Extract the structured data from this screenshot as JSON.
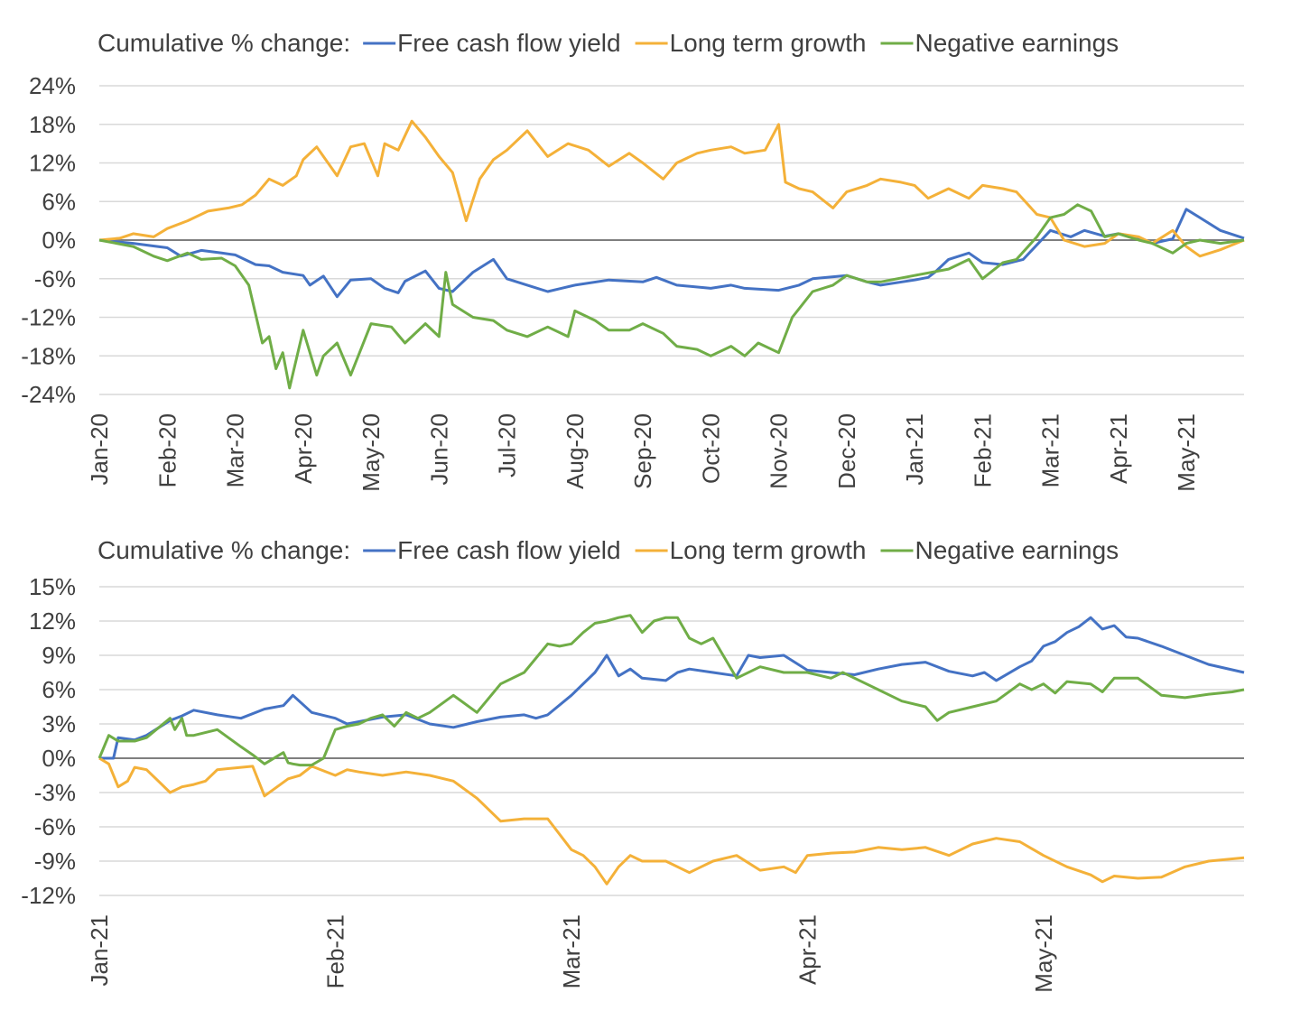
{
  "colors": {
    "free_cash_flow_yield": "#4472c4",
    "long_term_growth": "#f4b139",
    "negative_earnings": "#70ad47"
  },
  "chart_data": [
    {
      "type": "line",
      "legend_prefix": "Cumulative % change:",
      "legend_placement": "top",
      "grid": true,
      "ylim": [
        -24,
        24
      ],
      "yticks": [
        -24,
        -18,
        -12,
        -6,
        0,
        6,
        12,
        18,
        24
      ],
      "ytick_labels": [
        "-24%",
        "-18%",
        "-12%",
        "-6%",
        "0%",
        "6%",
        "12%",
        "18%",
        "24%"
      ],
      "xlim": [
        0,
        16.85
      ],
      "xticks": [
        0,
        1,
        2,
        3,
        4,
        5,
        6,
        7,
        8,
        9,
        10,
        11,
        12,
        13,
        14,
        15,
        16
      ],
      "xtick_labels": [
        "Jan-20",
        "Feb-20",
        "Mar-20",
        "Apr-20",
        "May-20",
        "Jun-20",
        "Jul-20",
        "Aug-20",
        "Sep-20",
        "Oct-20",
        "Nov-20",
        "Dec-20",
        "Jan-21",
        "Feb-21",
        "Mar-21",
        "Apr-21",
        "May-21"
      ],
      "series": [
        {
          "name": "Free cash flow yield",
          "color_key": "free_cash_flow_yield",
          "x": [
            0,
            0.5,
            1,
            1.2,
            1.5,
            1.8,
            2,
            2.3,
            2.5,
            2.7,
            3,
            3.1,
            3.3,
            3.5,
            3.7,
            4,
            4.2,
            4.4,
            4.5,
            4.8,
            5,
            5.2,
            5.5,
            5.8,
            6,
            6.3,
            6.6,
            6.8,
            7,
            7.5,
            8,
            8.2,
            8.5,
            9,
            9.3,
            9.5,
            10,
            10.3,
            10.5,
            11,
            11.3,
            11.5,
            12,
            12.2,
            12.3,
            12.5,
            12.8,
            13,
            13.3,
            13.6,
            14,
            14.3,
            14.5,
            14.8,
            15,
            15.3,
            15.5,
            15.8,
            16,
            16.2,
            16.5,
            16.85
          ],
          "values": [
            0,
            -0.5,
            -1.2,
            -2.5,
            -1.6,
            -2.0,
            -2.3,
            -3.8,
            -4.0,
            -5.0,
            -5.5,
            -7.0,
            -5.6,
            -8.8,
            -6.2,
            -6.0,
            -7.5,
            -8.2,
            -6.4,
            -4.8,
            -7.5,
            -8.0,
            -5.0,
            -3.0,
            -6.0,
            -7.0,
            -8.0,
            -7.5,
            -7.0,
            -6.2,
            -6.5,
            -5.8,
            -7.0,
            -7.5,
            -7.0,
            -7.5,
            -7.8,
            -7.0,
            -6.0,
            -5.5,
            -6.5,
            -7.0,
            -6.2,
            -5.8,
            -5.0,
            -3.0,
            -2.0,
            -3.5,
            -3.8,
            -3.0,
            1.5,
            0.5,
            1.5,
            0.6,
            1.0,
            0.4,
            -0.5,
            0.2,
            4.8,
            3.5,
            1.5,
            0.3
          ]
        },
        {
          "name": "Long term growth",
          "color_key": "long_term_growth",
          "x": [
            0,
            0.3,
            0.5,
            0.8,
            1,
            1.3,
            1.6,
            1.9,
            2.1,
            2.3,
            2.5,
            2.7,
            2.9,
            3,
            3.2,
            3.3,
            3.5,
            3.7,
            3.9,
            4.1,
            4.2,
            4.4,
            4.6,
            4.8,
            5,
            5.2,
            5.4,
            5.6,
            5.8,
            6,
            6.3,
            6.6,
            6.9,
            7.2,
            7.5,
            7.8,
            8,
            8.3,
            8.5,
            8.8,
            9,
            9.3,
            9.5,
            9.8,
            10,
            10.1,
            10.3,
            10.5,
            10.8,
            11,
            11.3,
            11.5,
            11.8,
            12,
            12.2,
            12.5,
            12.8,
            13,
            13.3,
            13.5,
            13.8,
            14,
            14.2,
            14.5,
            14.8,
            15,
            15.3,
            15.5,
            15.8,
            16,
            16.2,
            16.5,
            16.85
          ],
          "values": [
            0,
            0.3,
            1.0,
            0.5,
            1.8,
            3.0,
            4.5,
            5.0,
            5.5,
            7.0,
            9.5,
            8.5,
            10.0,
            12.5,
            14.5,
            13.0,
            10.0,
            14.5,
            15.0,
            10.0,
            15.0,
            14.0,
            18.5,
            16.0,
            13.0,
            10.5,
            3.0,
            9.5,
            12.5,
            14.0,
            17.0,
            13.0,
            15.0,
            14.0,
            11.5,
            13.5,
            12.0,
            9.5,
            12.0,
            13.5,
            14.0,
            14.5,
            13.5,
            14.0,
            18.0,
            9.0,
            8.0,
            7.5,
            5.0,
            7.5,
            8.5,
            9.5,
            9.0,
            8.5,
            6.5,
            8.0,
            6.5,
            8.5,
            8.0,
            7.5,
            4.0,
            3.5,
            0.0,
            -1.0,
            -0.5,
            1.0,
            0.5,
            -0.5,
            1.5,
            -1.0,
            -2.5,
            -1.5,
            0.0
          ]
        },
        {
          "name": "Negative earnings",
          "color_key": "negative_earnings",
          "x": [
            0,
            0.5,
            0.8,
            1,
            1.3,
            1.5,
            1.8,
            2,
            2.2,
            2.4,
            2.5,
            2.6,
            2.7,
            2.8,
            3,
            3.2,
            3.3,
            3.5,
            3.7,
            4,
            4.3,
            4.5,
            4.8,
            5,
            5.1,
            5.2,
            5.5,
            5.8,
            6,
            6.3,
            6.6,
            6.9,
            7,
            7.3,
            7.5,
            7.8,
            8,
            8.3,
            8.5,
            8.8,
            9,
            9.3,
            9.5,
            9.7,
            10,
            10.2,
            10.5,
            10.8,
            11,
            11.3,
            11.5,
            12,
            12.5,
            12.8,
            13,
            13.3,
            13.5,
            13.8,
            14,
            14.2,
            14.4,
            14.6,
            14.8,
            15,
            15.3,
            15.5,
            15.8,
            16,
            16.2,
            16.5,
            16.85
          ],
          "values": [
            0,
            -1.0,
            -2.5,
            -3.2,
            -2.0,
            -3.0,
            -2.8,
            -4.0,
            -7.0,
            -16.0,
            -15.0,
            -20.0,
            -17.5,
            -23.0,
            -14.0,
            -21.0,
            -18.0,
            -16.0,
            -21.0,
            -13.0,
            -13.5,
            -16.0,
            -13.0,
            -15.0,
            -5.0,
            -10.0,
            -12.0,
            -12.5,
            -14.0,
            -15.0,
            -13.5,
            -15.0,
            -11.0,
            -12.5,
            -14.0,
            -14.0,
            -13.0,
            -14.5,
            -16.5,
            -17.0,
            -18.0,
            -16.5,
            -18.0,
            -16.0,
            -17.5,
            -12.0,
            -8.0,
            -7.0,
            -5.5,
            -6.5,
            -6.5,
            -5.5,
            -4.5,
            -3.0,
            -6.0,
            -3.5,
            -3.0,
            0.5,
            3.5,
            4.0,
            5.5,
            4.5,
            0.5,
            1.0,
            0.0,
            -0.5,
            -2.0,
            -0.5,
            0.0,
            -0.5,
            0.0
          ]
        }
      ]
    },
    {
      "type": "line",
      "legend_prefix": "Cumulative % change:",
      "legend_placement": "top",
      "grid": true,
      "ylim": [
        -12,
        15
      ],
      "yticks": [
        -12,
        -9,
        -6,
        -3,
        0,
        3,
        6,
        9,
        12,
        15
      ],
      "ytick_labels": [
        "-12%",
        "-9%",
        "-6%",
        "-3%",
        "0%",
        "3%",
        "6%",
        "9%",
        "12%",
        "15%"
      ],
      "xlim": [
        0,
        4.85
      ],
      "xticks": [
        0,
        1,
        2,
        3,
        4
      ],
      "xtick_labels": [
        "Jan-21",
        "Feb-21",
        "Mar-21",
        "Apr-21",
        "May-21"
      ],
      "series": [
        {
          "name": "Free cash flow yield",
          "color_key": "free_cash_flow_yield",
          "x": [
            0,
            0.06,
            0.08,
            0.15,
            0.2,
            0.3,
            0.35,
            0.4,
            0.5,
            0.6,
            0.7,
            0.78,
            0.82,
            0.9,
            1.0,
            1.05,
            1.1,
            1.2,
            1.3,
            1.35,
            1.4,
            1.5,
            1.6,
            1.7,
            1.8,
            1.85,
            1.9,
            2.0,
            2.1,
            2.15,
            2.2,
            2.25,
            2.3,
            2.4,
            2.45,
            2.5,
            2.6,
            2.7,
            2.75,
            2.8,
            2.9,
            3.0,
            3.1,
            3.2,
            3.3,
            3.4,
            3.5,
            3.6,
            3.7,
            3.75,
            3.8,
            3.9,
            3.95,
            4.0,
            4.05,
            4.1,
            4.15,
            4.2,
            4.25,
            4.3,
            4.35,
            4.4,
            4.5,
            4.6,
            4.7,
            4.85
          ],
          "values": [
            0,
            0,
            1.8,
            1.6,
            2.0,
            3.3,
            3.7,
            4.2,
            3.8,
            3.5,
            4.3,
            4.6,
            5.5,
            4.0,
            3.5,
            3.0,
            3.2,
            3.6,
            3.8,
            3.4,
            3.0,
            2.7,
            3.2,
            3.6,
            3.8,
            3.5,
            3.8,
            5.5,
            7.5,
            9.0,
            7.2,
            7.8,
            7.0,
            6.8,
            7.5,
            7.8,
            7.5,
            7.2,
            9.0,
            8.8,
            9.0,
            7.7,
            7.5,
            7.3,
            7.8,
            8.2,
            8.4,
            7.6,
            7.2,
            7.5,
            6.8,
            8.0,
            8.5,
            9.8,
            10.2,
            11.0,
            11.5,
            12.3,
            11.3,
            11.6,
            10.6,
            10.5,
            9.8,
            9.0,
            8.2,
            7.5
          ]
        },
        {
          "name": "Long term growth",
          "color_key": "long_term_growth",
          "x": [
            0,
            0.04,
            0.08,
            0.12,
            0.15,
            0.2,
            0.25,
            0.3,
            0.35,
            0.4,
            0.45,
            0.5,
            0.6,
            0.65,
            0.7,
            0.8,
            0.85,
            0.9,
            1.0,
            1.05,
            1.1,
            1.2,
            1.3,
            1.4,
            1.5,
            1.6,
            1.7,
            1.8,
            1.9,
            2.0,
            2.05,
            2.1,
            2.15,
            2.2,
            2.25,
            2.3,
            2.4,
            2.5,
            2.55,
            2.6,
            2.7,
            2.8,
            2.9,
            2.95,
            3.0,
            3.1,
            3.2,
            3.3,
            3.4,
            3.5,
            3.6,
            3.7,
            3.8,
            3.9,
            4.0,
            4.1,
            4.2,
            4.25,
            4.3,
            4.4,
            4.5,
            4.6,
            4.7,
            4.85
          ],
          "values": [
            0,
            -0.5,
            -2.5,
            -2.0,
            -0.8,
            -1.0,
            -2.0,
            -3.0,
            -2.5,
            -2.3,
            -2.0,
            -1.0,
            -0.8,
            -0.7,
            -3.3,
            -1.8,
            -1.5,
            -0.7,
            -1.5,
            -1.0,
            -1.2,
            -1.5,
            -1.2,
            -1.5,
            -2.0,
            -3.5,
            -5.5,
            -5.3,
            -5.3,
            -8.0,
            -8.5,
            -9.5,
            -11.0,
            -9.5,
            -8.5,
            -9.0,
            -9.0,
            -10.0,
            -9.5,
            -9.0,
            -8.5,
            -9.8,
            -9.5,
            -10.0,
            -8.5,
            -8.3,
            -8.2,
            -7.8,
            -8.0,
            -7.8,
            -8.5,
            -7.5,
            -7.0,
            -7.3,
            -8.5,
            -9.5,
            -10.2,
            -10.8,
            -10.3,
            -10.5,
            -10.4,
            -9.5,
            -9.0,
            -8.7
          ]
        },
        {
          "name": "Negative earnings",
          "color_key": "negative_earnings",
          "x": [
            0,
            0.04,
            0.08,
            0.15,
            0.2,
            0.3,
            0.32,
            0.35,
            0.37,
            0.4,
            0.5,
            0.6,
            0.65,
            0.7,
            0.78,
            0.8,
            0.82,
            0.85,
            0.9,
            0.95,
            1.0,
            1.05,
            1.1,
            1.15,
            1.2,
            1.25,
            1.3,
            1.35,
            1.4,
            1.5,
            1.6,
            1.7,
            1.8,
            1.9,
            1.95,
            2.0,
            2.05,
            2.1,
            2.15,
            2.2,
            2.25,
            2.3,
            2.35,
            2.4,
            2.45,
            2.5,
            2.55,
            2.6,
            2.7,
            2.8,
            2.9,
            3.0,
            3.1,
            3.15,
            3.2,
            3.3,
            3.35,
            3.4,
            3.5,
            3.55,
            3.6,
            3.7,
            3.8,
            3.9,
            3.95,
            4.0,
            4.05,
            4.1,
            4.2,
            4.25,
            4.3,
            4.4,
            4.5,
            4.6,
            4.7,
            4.8,
            4.85
          ],
          "values": [
            0,
            2.0,
            1.5,
            1.5,
            1.8,
            3.5,
            2.5,
            3.5,
            2.0,
            2.0,
            2.5,
            1.0,
            0.3,
            -0.5,
            0.5,
            -0.4,
            -0.5,
            -0.6,
            -0.6,
            0.0,
            2.5,
            2.8,
            3.0,
            3.5,
            3.8,
            2.8,
            4.0,
            3.5,
            4.0,
            5.5,
            4.0,
            6.5,
            7.5,
            10.0,
            9.8,
            10.0,
            11.0,
            11.8,
            12.0,
            12.3,
            12.5,
            11.0,
            12.0,
            12.3,
            12.3,
            10.5,
            10.0,
            10.5,
            7.0,
            8.0,
            7.5,
            7.5,
            7.0,
            7.5,
            7.0,
            6.0,
            5.5,
            5.0,
            4.5,
            3.3,
            4.0,
            4.5,
            5.0,
            6.5,
            6.0,
            6.5,
            5.7,
            6.7,
            6.5,
            5.8,
            7.0,
            7.0,
            5.5,
            5.3,
            5.6,
            5.8,
            6.0
          ]
        }
      ]
    }
  ]
}
